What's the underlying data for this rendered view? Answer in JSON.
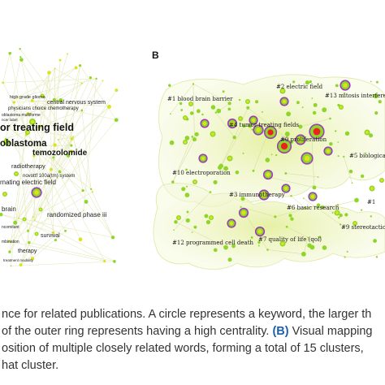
{
  "panel_b": {
    "letter": "B",
    "clusters": [
      "#1 blood brain barrier",
      "#2 electric field",
      "#13 mitosis interference",
      "#4 tumor treating fields",
      "#0 proliferation",
      "#5 biological",
      "#10 electroporation",
      "#3 immunotherapy",
      "#6 basic research",
      "#1 ",
      "#9 stereotactic neuro",
      "#7 quality of life (qol)",
      "#12 programmed cell death"
    ]
  },
  "panel_a": {
    "keywords_small": [
      "high grade glioma",
      "central nervous system",
      "physicians choice chemotherapy",
      "oblastoma multiforme",
      "ncer label"
    ],
    "keywords_large": [
      "or treating field",
      "oblastoma",
      "temozolomide"
    ],
    "keywords_mid": [
      "radiotherapy",
      "novottf 100a(tm) system",
      "rnating electric field",
      "brain",
      "randomized phase iii",
      "survival",
      "ncomitant",
      "mbination",
      "therapy",
      "treatment modality"
    ]
  },
  "caption": {
    "line1": "nce for related publications. A circle represents a keyword, the larger th",
    "line2_a": "of the outer ring represents having a high centrality. ",
    "line2_b": "(B)",
    "line2_c": " Visual mapping",
    "line3": "osition of multiple closely related words, forming a total of 15 clusters,",
    "line4": "hat cluster."
  },
  "colors": {
    "cluster_fill": "#f1f6cf",
    "node_green": "#8fd62a",
    "node_purple": "#9a3fb8",
    "node_red": "#e8241c",
    "node_yellow": "#d9e41f"
  }
}
